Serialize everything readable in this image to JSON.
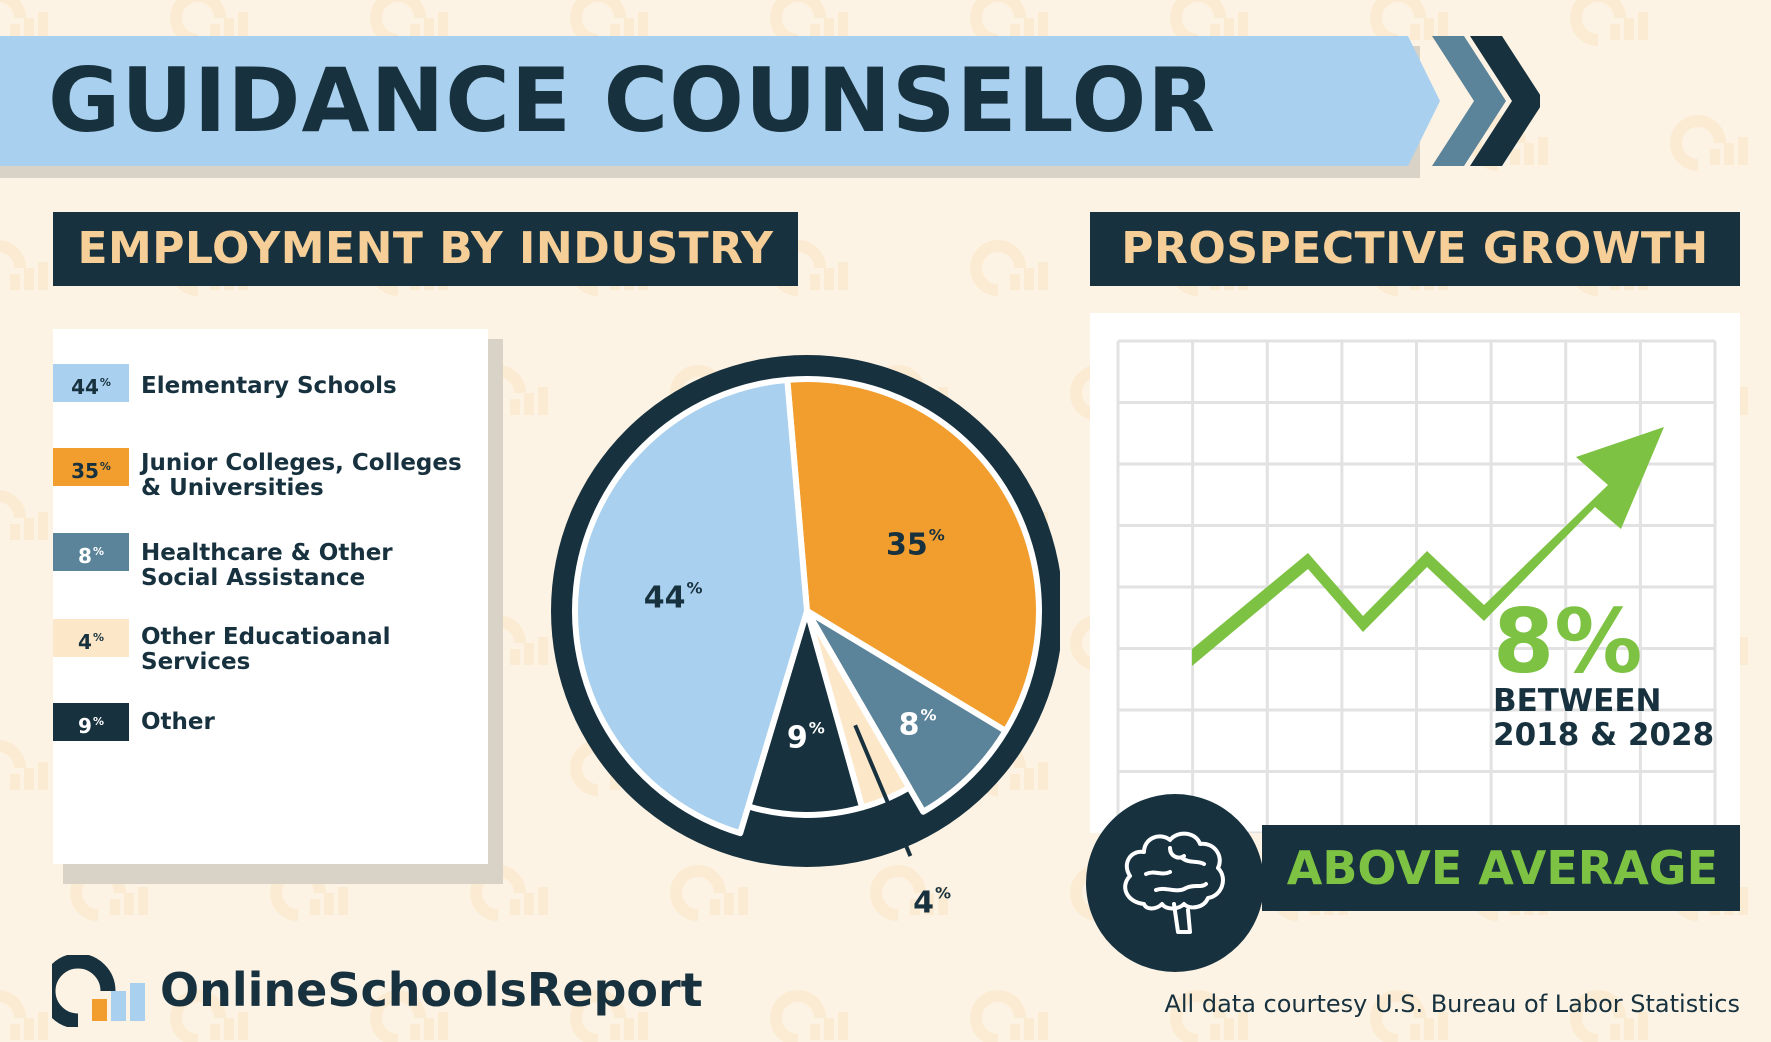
{
  "title": "GUIDANCE COUNSELOR",
  "sections": {
    "employment_header": "EMPLOYMENT BY INDUSTRY",
    "growth_header": "PROSPECTIVE GROWTH"
  },
  "colors": {
    "navy": "#17313e",
    "light_blue": "#a9d0ee",
    "orange": "#f29e2e",
    "slate": "#5b8399",
    "cream": "#fde7c9",
    "green": "#7dc242",
    "peach_text": "#f6cf98"
  },
  "chart_data": {
    "type": "pie",
    "slices": [
      {
        "label": "Elementary Schools",
        "value": 44,
        "value_label": "44",
        "color": "#a9d0ee"
      },
      {
        "label": "Junior Colleges, Colleges & Universities",
        "value": 35,
        "value_label": "35",
        "color": "#f29e2e"
      },
      {
        "label": "Healthcare & Other Social Assistance",
        "value": 8,
        "value_label": "8",
        "color": "#5b8399"
      },
      {
        "label": "Other Educatioanal Services",
        "value": 4,
        "value_label": "4",
        "color": "#fde7c9"
      },
      {
        "label": "Other",
        "value": 9,
        "value_label": "9",
        "color": "#17313e"
      }
    ],
    "unit": "%"
  },
  "legend": [
    {
      "value": "44",
      "unit": "%",
      "line1": "Elementary Schools",
      "line2": ""
    },
    {
      "value": "35",
      "unit": "%",
      "line1": "Junior Colleges, Colleges",
      "line2": "& Universities"
    },
    {
      "value": "8",
      "unit": "%",
      "line1": "Healthcare & Other",
      "line2": "Social Assistance"
    },
    {
      "value": "4",
      "unit": "%",
      "line1": "Other Educatioanal",
      "line2": "Services"
    },
    {
      "value": "9",
      "unit": "%",
      "line1": "Other",
      "line2": ""
    }
  ],
  "growth": {
    "value": "8%",
    "line1": "BETWEEN",
    "line2": "2018 & 2028",
    "rating": "ABOVE AVERAGE",
    "icon": "brain-icon"
  },
  "footer": {
    "logo_text": "OnlineSchoolsReport",
    "source": "All data courtesy U.S. Bureau of Labor Statistics"
  }
}
